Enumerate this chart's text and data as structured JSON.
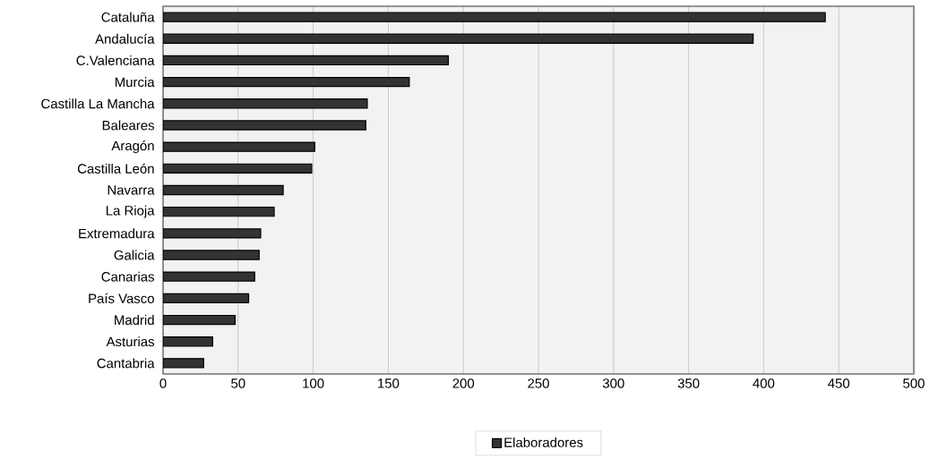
{
  "chart_data": {
    "type": "bar",
    "orientation": "horizontal",
    "categories": [
      "Cataluña",
      "Andalucía",
      "C.Valenciana",
      "Murcia",
      "Castilla La Mancha",
      "Baleares",
      "Aragón",
      "Castilla León",
      "Navarra",
      "La Rioja",
      "Extremadura",
      "Galicia",
      "Canarias",
      "País Vasco",
      "Madrid",
      "Asturias",
      "Cantabria"
    ],
    "series": [
      {
        "name": "Elaboradores",
        "color": "#333333",
        "values": [
          441,
          393,
          190,
          164,
          136,
          135,
          101,
          99,
          80,
          74,
          65,
          64,
          61,
          57,
          48,
          33,
          27
        ]
      }
    ],
    "xlim": [
      0,
      500
    ],
    "xticks": [
      0,
      50,
      100,
      150,
      200,
      250,
      300,
      350,
      400,
      450,
      500
    ],
    "grid": "x",
    "legend": "bottom"
  }
}
